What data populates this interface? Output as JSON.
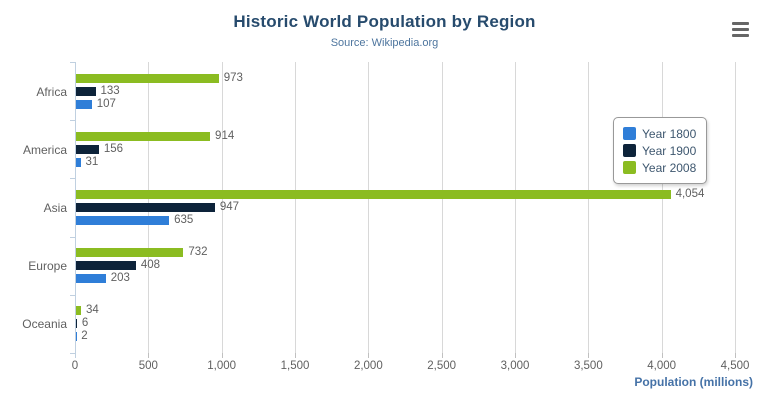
{
  "header": {
    "title": "Historic World Population by Region",
    "subtitle": "Source: Wikipedia.org",
    "menu_icon": "hamburger-menu-icon"
  },
  "chart_data": {
    "type": "bar",
    "orientation": "horizontal",
    "title": "Historic World Population by Region",
    "subtitle": "Source: Wikipedia.org",
    "categories": [
      "Africa",
      "America",
      "Asia",
      "Europe",
      "Oceania"
    ],
    "series": [
      {
        "name": "Year 1800",
        "color": "#2f7ed8",
        "values": [
          107,
          31,
          635,
          203,
          2
        ]
      },
      {
        "name": "Year 1900",
        "color": "#0d233a",
        "values": [
          133,
          156,
          947,
          408,
          6
        ]
      },
      {
        "name": "Year 2008",
        "color": "#8bbc21",
        "values": [
          973,
          914,
          4054,
          732,
          34
        ]
      }
    ],
    "bar_order_top_to_bottom": [
      "Year 2008",
      "Year 1900",
      "Year 1800"
    ],
    "data_labels": true,
    "data_label_format": "thousands-comma",
    "xlabel": "Population (millions)",
    "xlim": [
      0,
      4500
    ],
    "x_ticks": [
      0,
      500,
      1000,
      1500,
      2000,
      2500,
      3000,
      3500,
      4000,
      4500
    ],
    "x_tick_labels": [
      "0",
      "500",
      "1,000",
      "1,500",
      "2,000",
      "2,500",
      "3,000",
      "3,500",
      "4,000",
      "4,500"
    ],
    "grid": true,
    "legend_position": "right-overlay",
    "legend_entries": [
      "Year 1800",
      "Year 1900",
      "Year 2008"
    ]
  },
  "colors": {
    "series_blue": "#2f7ed8",
    "series_navy": "#0d233a",
    "series_green": "#8bbc21",
    "title_text": "#274b6d",
    "subtitle_text": "#4d759e",
    "axis_title_text": "#4572a7",
    "label_text": "#606060",
    "gridline": "#d8d8d8",
    "axis_line": "#c0d0e0",
    "legend_border": "#999999",
    "legend_text": "#3e576f",
    "menu_icon": "#666666"
  }
}
